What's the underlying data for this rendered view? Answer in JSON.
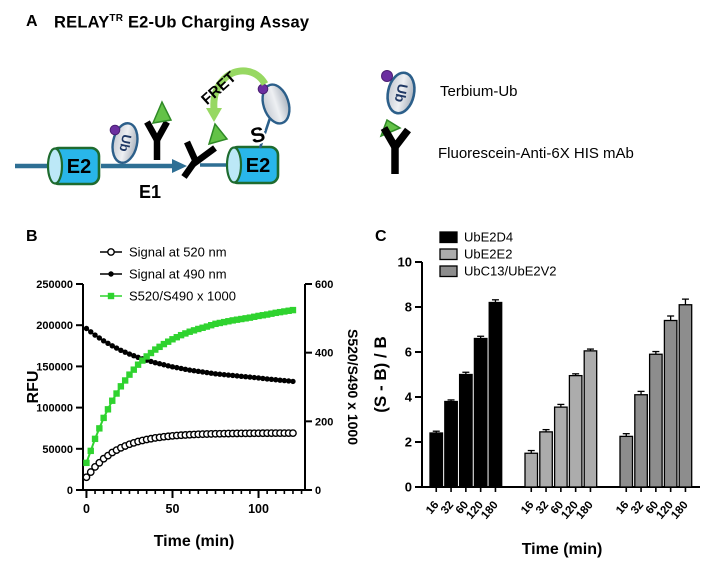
{
  "title": {
    "panel_label": "A",
    "main": "RELAY",
    "sup": "TR",
    "rest": " E2-Ub Charging Assay"
  },
  "panel_a": {
    "schematic": {
      "e2_left_label": "E2",
      "e1_label": "E1",
      "ub_label": "Ub",
      "e2_right_label": "E2",
      "thioester_label": "S",
      "fret_label": "FRET"
    },
    "legend": [
      {
        "icon": "terbium-ub-icon",
        "label": "Terbium-Ub"
      },
      {
        "icon": "fluorescein-mab-icon",
        "label": "Fluorescein-Anti-6X HIS mAb"
      }
    ]
  },
  "panel_b": {
    "label": "B"
  },
  "panel_c": {
    "label": "C"
  },
  "chart_data": [
    {
      "id": "panel-b",
      "type": "line",
      "title": "",
      "xlabel": "Time (min)",
      "ylabel_left": "RFU",
      "ylabel_right": "S520/S490 x 1000",
      "xlim": [
        -2,
        127
      ],
      "xticks": [
        0,
        50,
        100
      ],
      "x_minor_step": 5,
      "ylim_left": [
        0,
        250000
      ],
      "yticks_left": [
        0,
        50000,
        100000,
        150000,
        200000,
        250000
      ],
      "ylim_right": [
        0,
        600
      ],
      "yticks_right": [
        0,
        200,
        400,
        600
      ],
      "grid": false,
      "legend_position": "top-left-inside",
      "x": [
        0,
        5,
        10,
        15,
        20,
        25,
        30,
        35,
        40,
        45,
        50,
        55,
        60,
        65,
        70,
        75,
        80,
        85,
        90,
        95,
        100,
        105,
        110,
        115,
        120
      ],
      "series": [
        {
          "name": "Signal at 520 nm",
          "axis": "left",
          "marker": "open-circle",
          "color": "#000000",
          "values": [
            15500,
            28000,
            38000,
            45500,
            51200,
            55500,
            58800,
            61300,
            63200,
            64600,
            65700,
            66500,
            67100,
            67600,
            67900,
            68200,
            68400,
            68600,
            68700,
            68800,
            68900,
            68950,
            69000,
            69000,
            69000
          ]
        },
        {
          "name": "Signal at 490 nm",
          "axis": "left",
          "marker": "filled-circle",
          "color": "#000000",
          "values": [
            196000,
            188000,
            181000,
            175000,
            169500,
            165000,
            161000,
            157500,
            154500,
            152000,
            149500,
            147500,
            145500,
            144000,
            142500,
            141000,
            140000,
            139000,
            138000,
            137000,
            136000,
            134800,
            133800,
            132800,
            131800
          ]
        },
        {
          "name": "S520/S490 x 1000",
          "axis": "right",
          "marker": "filled-square",
          "color": "#2FD32F",
          "values": [
            79,
            149,
            210,
            260,
            302,
            336,
            365,
            389,
            409,
            425,
            439,
            451,
            461,
            469,
            476,
            484,
            489,
            494,
            498,
            502,
            507,
            511,
            516,
            520,
            524
          ]
        }
      ]
    },
    {
      "id": "panel-c",
      "type": "bar",
      "title": "",
      "xlabel": "Time (min)",
      "ylabel": "(S - B) / B",
      "ylim": [
        0,
        10
      ],
      "yticks": [
        0,
        2,
        4,
        6,
        8,
        10
      ],
      "grid": false,
      "legend_position": "top-left-inside",
      "categories": [
        "16",
        "32",
        "60",
        "120",
        "180"
      ],
      "series": [
        {
          "name": "UbE2D4",
          "color": "#000000",
          "values": [
            2.4,
            3.8,
            5.0,
            6.6,
            8.2
          ],
          "errors": [
            0.08,
            0.07,
            0.1,
            0.1,
            0.12
          ]
        },
        {
          "name": "UbE2E2",
          "color": "#ACACAC",
          "values": [
            1.5,
            2.45,
            3.55,
            4.95,
            6.05
          ],
          "errors": [
            0.12,
            0.1,
            0.12,
            0.08,
            0.08
          ]
        },
        {
          "name": "UbC13/UbE2V2",
          "color": "#8D8D8D",
          "values": [
            2.25,
            4.1,
            5.9,
            7.4,
            8.1
          ],
          "errors": [
            0.12,
            0.15,
            0.12,
            0.2,
            0.25
          ]
        }
      ]
    }
  ],
  "colors": {
    "series_green": "#2FD32F",
    "fret_arrow_green": "#97D862",
    "triangle_green_fill": "#63C247",
    "triangle_green_stroke": "#2F8A26",
    "cylinder_cyan": "#29B6EA",
    "cylinder_cap": "#BCE8F7",
    "cylinder_stroke": "#1E6B2F",
    "arrow_teal": "#2E6F94",
    "oval_stroke_blue": "#2C5F8A",
    "ub_text_navy": "#1F3864",
    "purple_dot": "#6B2FA0"
  }
}
